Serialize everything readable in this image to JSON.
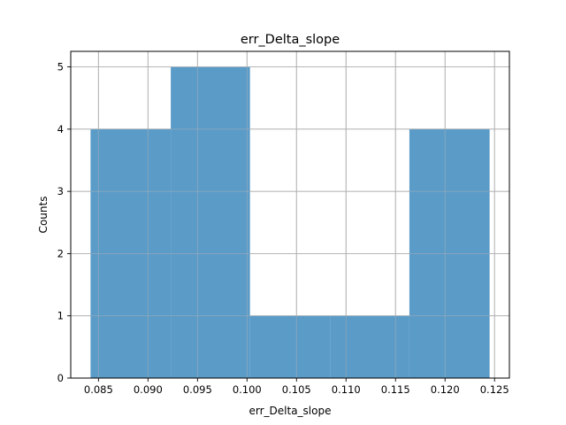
{
  "chart_data": {
    "type": "bar",
    "title": "err_Delta_slope",
    "xlabel": "err_Delta_slope",
    "ylabel": "Counts",
    "bins": [
      {
        "start": 0.0842,
        "end": 0.0923,
        "count": 4
      },
      {
        "start": 0.0923,
        "end": 0.1003,
        "count": 5
      },
      {
        "start": 0.1003,
        "end": 0.1084,
        "count": 1
      },
      {
        "start": 0.1084,
        "end": 0.1164,
        "count": 1
      },
      {
        "start": 0.1164,
        "end": 0.1245,
        "count": 4
      }
    ],
    "xlim": [
      0.0822,
      0.1265
    ],
    "ylim": [
      0,
      5.25
    ],
    "xticks": [
      0.085,
      0.09,
      0.095,
      0.1,
      0.105,
      0.11,
      0.115,
      0.12,
      0.125
    ],
    "xtick_labels": [
      "0.085",
      "0.090",
      "0.095",
      "0.100",
      "0.105",
      "0.110",
      "0.115",
      "0.120",
      "0.125"
    ],
    "yticks": [
      0,
      1,
      2,
      3,
      4,
      5
    ],
    "ytick_labels": [
      "0",
      "1",
      "2",
      "3",
      "4",
      "5"
    ],
    "grid": true,
    "bar_color": "#5a9bc8"
  }
}
